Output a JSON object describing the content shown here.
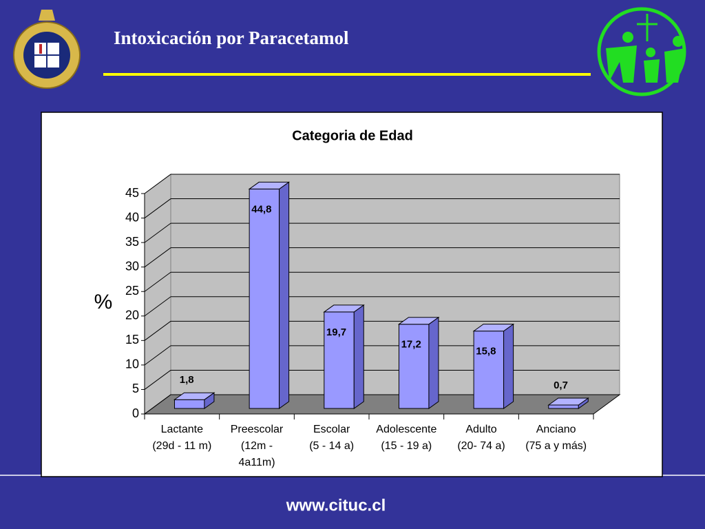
{
  "page_title": "Intoxicación por Paracetamol",
  "footer": "www.cituc.cl",
  "chart_data": {
    "type": "bar",
    "title": "Categoria de Edad",
    "y_label": "%",
    "categories": [
      "Lactante\n(29d - 11 m)",
      "Preescolar\n(12m -\n4a11m)",
      "Escolar\n(5 - 14 a)",
      "Adolescente\n(15 - 19 a)",
      "Adulto\n(20- 74 a)",
      "Anciano\n(75 a y más)"
    ],
    "values": [
      1.8,
      44.8,
      19.7,
      17.2,
      15.8,
      0.7
    ],
    "value_labels": [
      "1,8",
      "44,8",
      "19,7",
      "17,2",
      "15,8",
      "0,7"
    ],
    "color": "#9999ff",
    "ylim": [
      0,
      45
    ],
    "yticks": [
      0,
      5,
      10,
      15,
      20,
      25,
      30,
      35,
      40,
      45
    ],
    "grid": true
  }
}
